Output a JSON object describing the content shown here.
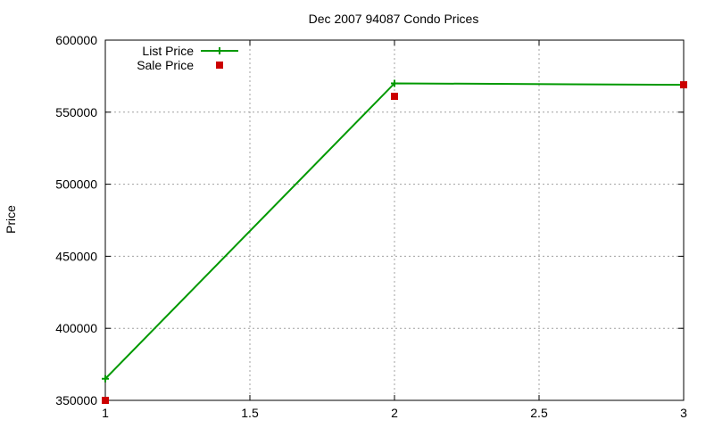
{
  "chart_data": {
    "type": "line",
    "title": "Dec 2007 94087 Condo Prices",
    "xlabel": "",
    "ylabel": "Price",
    "xlim": [
      1,
      3
    ],
    "ylim": [
      350000,
      600000
    ],
    "x_ticks": [
      1,
      1.5,
      2,
      2.5,
      3
    ],
    "x_tick_labels": [
      "1",
      "1.5",
      "2",
      "2.5",
      "3"
    ],
    "y_ticks": [
      350000,
      400000,
      450000,
      500000,
      550000,
      600000
    ],
    "y_tick_labels": [
      "350000",
      "400000",
      "450000",
      "500000",
      "550000",
      "600000"
    ],
    "grid": true,
    "legend_position": "top-left",
    "series": [
      {
        "name": "List Price",
        "style": "line-plus",
        "color": "#009900",
        "x": [
          1,
          2,
          3
        ],
        "y": [
          365000,
          570000,
          569000
        ]
      },
      {
        "name": "Sale Price",
        "style": "square",
        "color": "#cc0000",
        "x": [
          1,
          2,
          3
        ],
        "y": [
          350000,
          561000,
          569000
        ]
      }
    ]
  }
}
